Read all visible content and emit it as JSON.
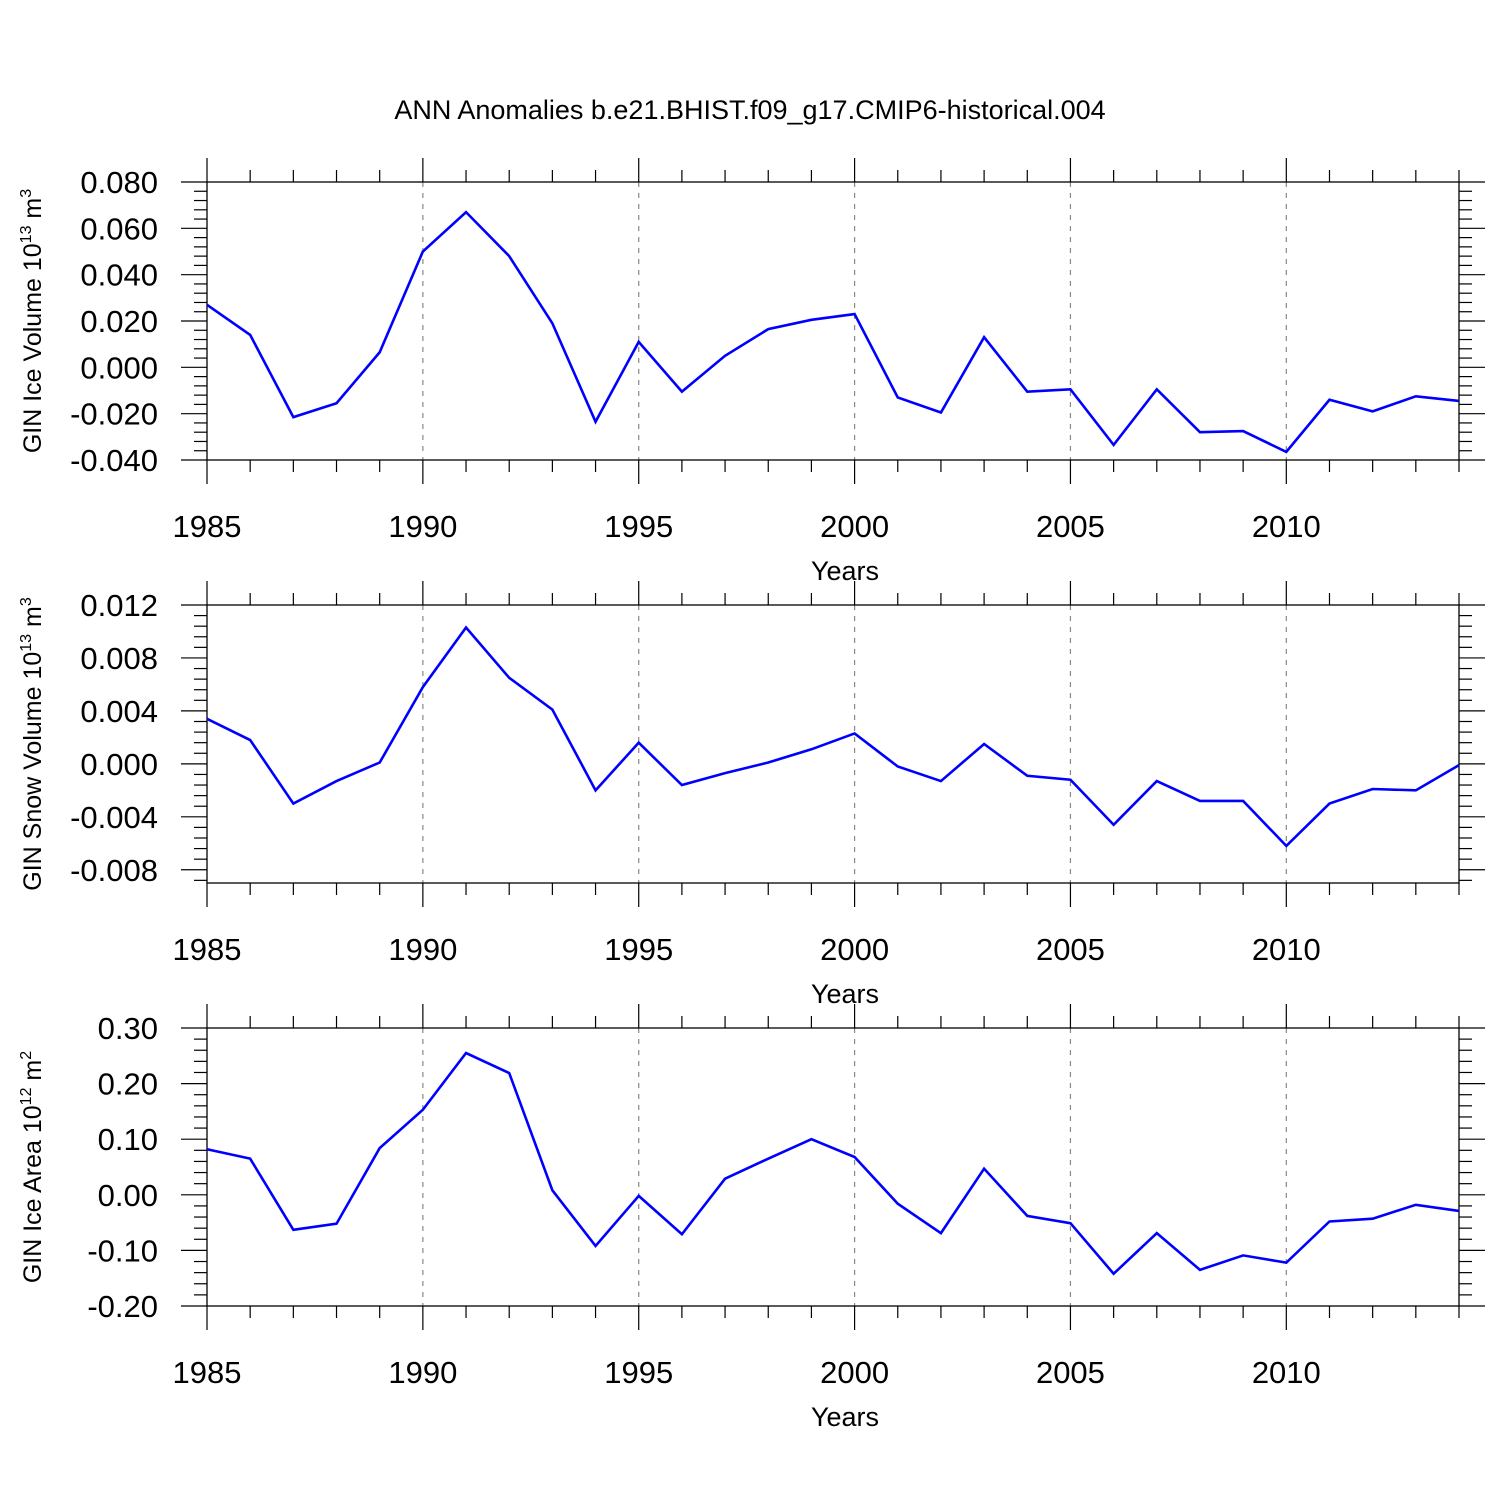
{
  "figure": {
    "title": "ANN Anomalies b.e21.BHIST.f09_g17.CMIP6-historical.004",
    "line_color": "#0000ff",
    "grid_color": "#888888"
  },
  "chart_data": [
    {
      "type": "line",
      "title": "ANN Anomalies b.e21.BHIST.f09_g17.CMIP6-historical.004",
      "ylabel": "GIN Ice Volume 10",
      "ylabel_exp": "13",
      "ylabel_unit": "m",
      "ylabel_unit_exp": "3",
      "xlabel": "Years",
      "xlim": [
        1985,
        2014
      ],
      "ylim": [
        -0.04,
        0.08
      ],
      "yticks": [
        -0.04,
        -0.02,
        0.0,
        0.02,
        0.04,
        0.06,
        0.08
      ],
      "yticklabels": [
        "-0.040",
        "-0.020",
        "0.000",
        "0.020",
        "0.040",
        "0.060",
        "0.080"
      ],
      "xticks": [
        1985,
        1990,
        1995,
        2000,
        2005,
        2010
      ],
      "xticklabels": [
        "1985",
        "1990",
        "1995",
        "2000",
        "2005",
        "2010"
      ],
      "grid_x": [
        1990,
        1995,
        2000,
        2005,
        2010
      ],
      "x": [
        1985,
        1986,
        1987,
        1988,
        1989,
        1990,
        1991,
        1992,
        1993,
        1994,
        1995,
        1996,
        1997,
        1998,
        1999,
        2000,
        2001,
        2002,
        2003,
        2004,
        2005,
        2006,
        2007,
        2008,
        2009,
        2010,
        2011,
        2012,
        2013,
        2014
      ],
      "series": [
        {
          "name": "GIN Ice Volume",
          "color": "#0000ff",
          "values": [
            0.027,
            0.014,
            -0.0215,
            -0.0155,
            0.0065,
            0.05,
            0.067,
            0.048,
            0.019,
            -0.0235,
            0.011,
            -0.0105,
            0.005,
            0.0165,
            0.0205,
            0.023,
            -0.013,
            -0.0195,
            0.013,
            -0.0105,
            -0.0095,
            -0.0335,
            -0.0095,
            -0.028,
            -0.0275,
            -0.0365,
            -0.014,
            -0.019,
            -0.0125,
            -0.0145
          ]
        }
      ]
    },
    {
      "type": "line",
      "ylabel": "GIN Snow Volume 10",
      "ylabel_exp": "13",
      "ylabel_unit": "m",
      "ylabel_unit_exp": "3",
      "xlabel": "Years",
      "xlim": [
        1985,
        2014
      ],
      "ylim": [
        -0.009,
        0.012
      ],
      "yticks": [
        -0.008,
        -0.004,
        0.0,
        0.004,
        0.008,
        0.012
      ],
      "yticklabels": [
        "-0.008",
        "-0.004",
        "0.000",
        "0.004",
        "0.008",
        "0.012"
      ],
      "xticks": [
        1985,
        1990,
        1995,
        2000,
        2005,
        2010
      ],
      "xticklabels": [
        "1985",
        "1990",
        "1995",
        "2000",
        "2005",
        "2010"
      ],
      "grid_x": [
        1990,
        1995,
        2000,
        2005,
        2010
      ],
      "x": [
        1985,
        1986,
        1987,
        1988,
        1989,
        1990,
        1991,
        1992,
        1993,
        1994,
        1995,
        1996,
        1997,
        1998,
        1999,
        2000,
        2001,
        2002,
        2003,
        2004,
        2005,
        2006,
        2007,
        2008,
        2009,
        2010,
        2011,
        2012,
        2013,
        2014
      ],
      "series": [
        {
          "name": "GIN Snow Volume",
          "color": "#0000ff",
          "values": [
            0.0034,
            0.0018,
            -0.003,
            -0.0013,
            0.0001,
            0.0058,
            0.0103,
            0.0065,
            0.0041,
            -0.002,
            0.0016,
            -0.0016,
            -0.0007,
            0.0001,
            0.0011,
            0.0023,
            -0.0002,
            -0.0013,
            0.0015,
            -0.0009,
            -0.0012,
            -0.0046,
            -0.0013,
            -0.0028,
            -0.0028,
            -0.0062,
            -0.003,
            -0.0019,
            -0.002,
            -0.0001
          ]
        }
      ]
    },
    {
      "type": "line",
      "ylabel": "GIN Ice Area 10",
      "ylabel_exp": "12",
      "ylabel_unit": "m",
      "ylabel_unit_exp": "2",
      "xlabel": "Years",
      "xlim": [
        1985,
        2014
      ],
      "ylim": [
        -0.2,
        0.3
      ],
      "yticks": [
        -0.2,
        -0.1,
        0.0,
        0.1,
        0.2,
        0.3
      ],
      "yticklabels": [
        "-0.20",
        "-0.10",
        "0.00",
        "0.10",
        "0.20",
        "0.30"
      ],
      "xticks": [
        1985,
        1990,
        1995,
        2000,
        2005,
        2010
      ],
      "xticklabels": [
        "1985",
        "1990",
        "1995",
        "2000",
        "2005",
        "2010"
      ],
      "grid_x": [
        1990,
        1995,
        2000,
        2005,
        2010
      ],
      "x": [
        1985,
        1986,
        1987,
        1988,
        1989,
        1990,
        1991,
        1992,
        1993,
        1994,
        1995,
        1996,
        1997,
        1998,
        1999,
        2000,
        2001,
        2002,
        2003,
        2004,
        2005,
        2006,
        2007,
        2008,
        2009,
        2010,
        2011,
        2012,
        2013,
        2014
      ],
      "series": [
        {
          "name": "GIN Ice Area",
          "color": "#0000ff",
          "values": [
            0.082,
            0.065,
            -0.063,
            -0.052,
            0.084,
            0.153,
            0.255,
            0.219,
            0.008,
            -0.092,
            -0.002,
            -0.071,
            0.029,
            0.065,
            0.1,
            0.068,
            -0.016,
            -0.069,
            0.047,
            -0.038,
            -0.051,
            -0.142,
            -0.069,
            -0.135,
            -0.109,
            -0.122,
            -0.048,
            -0.043,
            -0.018,
            -0.029
          ]
        }
      ]
    }
  ]
}
